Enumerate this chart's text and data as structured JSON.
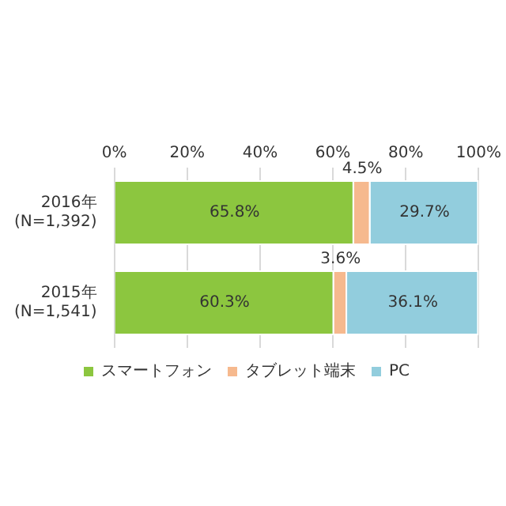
{
  "chart_data": {
    "type": "bar",
    "orientation": "horizontal",
    "stacked": true,
    "categories": [
      "2016年\n(N=1,392)",
      "2015年\n(N=1,541)"
    ],
    "series": [
      {
        "name": "スマートフォン",
        "color": "#8cc63f",
        "values": [
          65.8,
          60.3
        ],
        "value_labels": [
          "65.8%",
          "60.3%"
        ]
      },
      {
        "name": "タブレット端末",
        "color": "#f6b98e",
        "values": [
          4.5,
          3.6
        ],
        "value_labels": [
          "4.5%",
          "3.6%"
        ]
      },
      {
        "name": "PC",
        "color": "#92cddd",
        "values": [
          29.7,
          36.1
        ],
        "value_labels": [
          "29.7%",
          "36.1%"
        ]
      }
    ],
    "xlim": [
      0,
      100
    ],
    "xticks": [
      {
        "value": 0,
        "label": "0%"
      },
      {
        "value": 20,
        "label": "20%"
      },
      {
        "value": 40,
        "label": "40%"
      },
      {
        "value": 60,
        "label": "60%"
      },
      {
        "value": 80,
        "label": "80%"
      },
      {
        "value": 100,
        "label": "100%"
      }
    ],
    "grid": "x",
    "legend": "bottom"
  }
}
